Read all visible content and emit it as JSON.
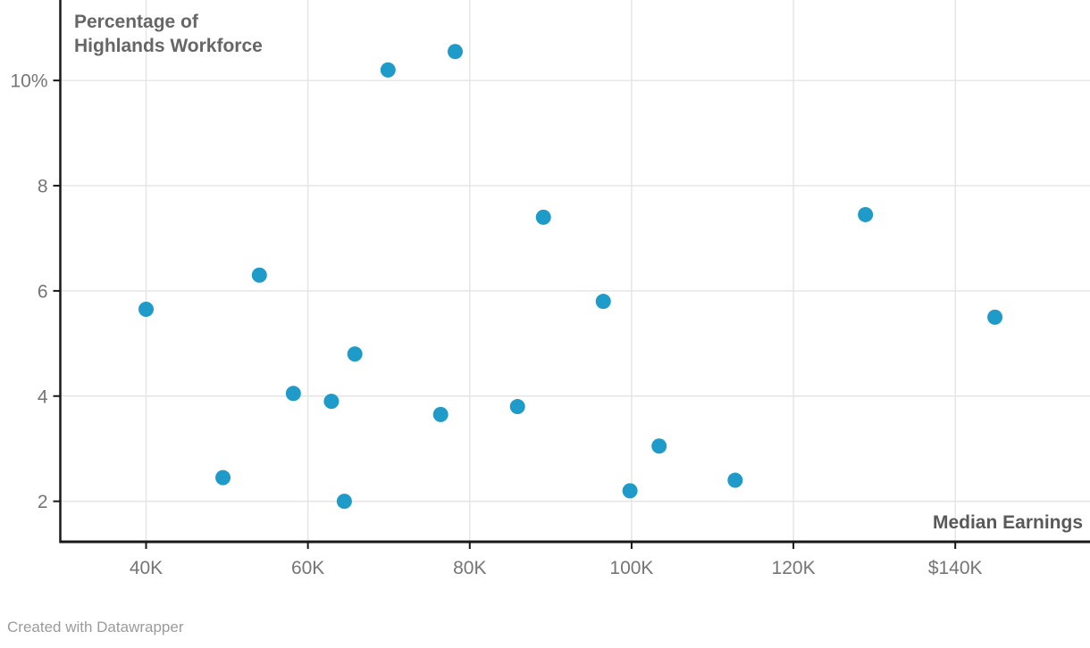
{
  "chart": {
    "y_axis_title_line1": "Percentage of",
    "y_axis_title_line2": "Highlands Workforce",
    "x_axis_title": "Median Earnings",
    "footer_text": "Created with Datawrapper"
  },
  "chart_data": {
    "type": "scatter",
    "title": "",
    "xlabel": "Median Earnings",
    "ylabel": "Percentage of Highlands Workforce",
    "xlim": [
      29.4,
      156.65
    ],
    "ylim": [
      1.23,
      11.53
    ],
    "grid": true,
    "legend": "none",
    "x_ticks": [
      {
        "value": 40,
        "label": "40K"
      },
      {
        "value": 60,
        "label": "60K"
      },
      {
        "value": 80,
        "label": "80K"
      },
      {
        "value": 100,
        "label": "100K"
      },
      {
        "value": 120,
        "label": "120K"
      },
      {
        "value": 140,
        "label": "$140K"
      }
    ],
    "y_ticks": [
      {
        "value": 2,
        "label": "2"
      },
      {
        "value": 4,
        "label": "4"
      },
      {
        "value": 6,
        "label": "6"
      },
      {
        "value": 8,
        "label": "8"
      },
      {
        "value": 10,
        "label": "10%"
      }
    ],
    "x_units": "thousand dollars",
    "y_units": "percent",
    "points": [
      {
        "x": 40.0,
        "y": 5.65
      },
      {
        "x": 49.5,
        "y": 2.45
      },
      {
        "x": 54.0,
        "y": 6.3
      },
      {
        "x": 58.2,
        "y": 4.05
      },
      {
        "x": 62.9,
        "y": 3.9
      },
      {
        "x": 64.5,
        "y": 2.0
      },
      {
        "x": 65.8,
        "y": 4.8
      },
      {
        "x": 69.9,
        "y": 10.2
      },
      {
        "x": 76.4,
        "y": 3.65
      },
      {
        "x": 78.2,
        "y": 10.55
      },
      {
        "x": 85.9,
        "y": 3.8
      },
      {
        "x": 89.1,
        "y": 7.4
      },
      {
        "x": 96.5,
        "y": 5.8
      },
      {
        "x": 99.8,
        "y": 2.2
      },
      {
        "x": 103.4,
        "y": 3.05
      },
      {
        "x": 112.8,
        "y": 2.4
      },
      {
        "x": 128.9,
        "y": 7.45
      },
      {
        "x": 144.9,
        "y": 5.5
      }
    ],
    "colors": {
      "point": "#1e9bc8",
      "gridline": "#e4e4e4",
      "axis": "#181818",
      "tick_label": "#757575"
    }
  }
}
